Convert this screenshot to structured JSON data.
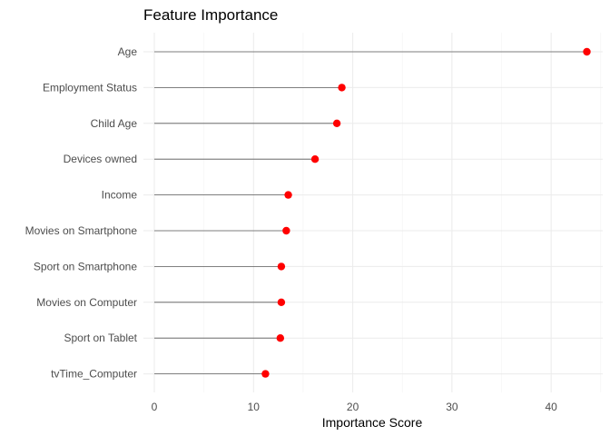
{
  "chart_data": {
    "type": "lollipop",
    "title": "Feature Importance",
    "xlabel": "Importance Score",
    "ylabel": "",
    "xlim": [
      -1.1,
      45.2
    ],
    "xticks": [
      0,
      10,
      20,
      30,
      40
    ],
    "grid": true,
    "marker_color": "#ff0000",
    "stem_color": "#5a5a5a",
    "categories": [
      "Age",
      "Employment Status",
      "Child Age",
      "Devices owned",
      "Income",
      "Movies on Smartphone",
      "Sport on Smartphone",
      "Movies on Computer",
      "Sport on Tablet",
      "tvTime_Computer"
    ],
    "values": [
      43.6,
      18.9,
      18.4,
      16.2,
      13.5,
      13.3,
      12.8,
      12.8,
      12.7,
      11.2
    ]
  }
}
